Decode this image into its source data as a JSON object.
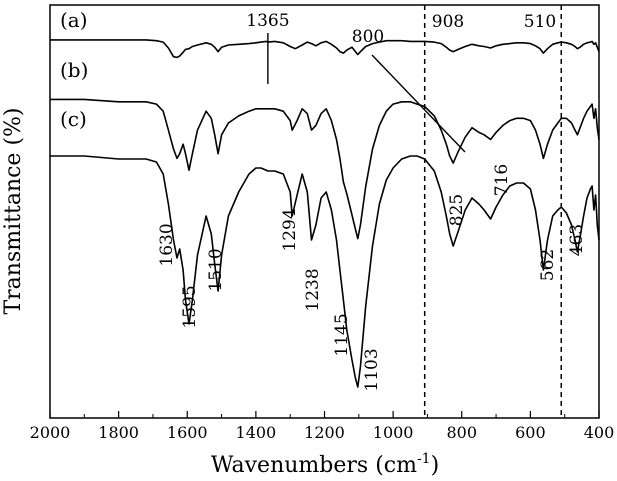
{
  "chart_data": {
    "type": "line",
    "title": "",
    "xlabel": "Wavenumbers",
    "xlabel_unit": "(cm-1)",
    "ylabel": "Transmittance (%)",
    "xlim": [
      2000,
      400
    ],
    "x_reversed": true,
    "x_ticks": [
      2000,
      1800,
      1600,
      1400,
      1200,
      1000,
      800,
      600,
      400
    ],
    "y_tick_labels": false,
    "grid": false,
    "series": [
      {
        "name": "(a)",
        "x": [
          2000,
          1900,
          1800,
          1720,
          1690,
          1670,
          1655,
          1640,
          1630,
          1622,
          1612,
          1605,
          1595,
          1585,
          1570,
          1545,
          1530,
          1520,
          1510,
          1500,
          1480,
          1450,
          1420,
          1400,
          1385,
          1370,
          1365,
          1345,
          1320,
          1300,
          1285,
          1265,
          1250,
          1238,
          1225,
          1210,
          1195,
          1180,
          1165,
          1155,
          1145,
          1135,
          1120,
          1110,
          1103,
          1095,
          1080,
          1060,
          1040,
          1020,
          1000,
          975,
          950,
          930,
          908,
          880,
          860,
          845,
          835,
          825,
          810,
          790,
          770,
          750,
          735,
          716,
          700,
          680,
          660,
          640,
          620,
          600,
          585,
          572,
          562,
          550,
          535,
          520,
          510,
          495,
          480,
          470,
          463,
          455,
          445,
          435,
          425,
          420,
          415,
          410,
          405,
          400
        ],
        "y": [
          96,
          96,
          96,
          96,
          95,
          93,
          85,
          73,
          72,
          74,
          79,
          83,
          84,
          87,
          89,
          92,
          90,
          86,
          80,
          86,
          89,
          90,
          91,
          92,
          93,
          94,
          93,
          94,
          92,
          87,
          84,
          89,
          93,
          91,
          88,
          92,
          94,
          90,
          85,
          80,
          78,
          82,
          86,
          80,
          76,
          80,
          87,
          91,
          93,
          95,
          95,
          95,
          94,
          94,
          94,
          93,
          91,
          86,
          82,
          80,
          83,
          87,
          90,
          88,
          87,
          85,
          88,
          90,
          91,
          92,
          92,
          91,
          88,
          84,
          78,
          84,
          90,
          92,
          93,
          92,
          90,
          87,
          84,
          86,
          90,
          92,
          93,
          94,
          90,
          92,
          86,
          80
        ]
      },
      {
        "name": "(b)",
        "x": [
          2000,
          1900,
          1800,
          1720,
          1690,
          1670,
          1655,
          1640,
          1630,
          1622,
          1612,
          1605,
          1595,
          1585,
          1570,
          1545,
          1530,
          1520,
          1510,
          1500,
          1480,
          1450,
          1420,
          1400,
          1385,
          1365,
          1345,
          1320,
          1300,
          1294,
          1280,
          1265,
          1250,
          1238,
          1225,
          1210,
          1195,
          1180,
          1165,
          1155,
          1145,
          1135,
          1120,
          1110,
          1103,
          1095,
          1080,
          1060,
          1040,
          1020,
          1000,
          975,
          950,
          930,
          908,
          880,
          860,
          845,
          835,
          825,
          810,
          790,
          770,
          750,
          735,
          716,
          700,
          680,
          660,
          640,
          620,
          600,
          585,
          572,
          562,
          550,
          535,
          520,
          510,
          495,
          480,
          470,
          463,
          455,
          445,
          435,
          425,
          420,
          415,
          410,
          405,
          400
        ],
        "y": [
          85,
          85,
          84,
          84,
          83,
          80,
          72,
          64,
          60,
          62,
          66,
          62,
          55,
          62,
          72,
          80,
          77,
          70,
          62,
          70,
          75,
          78,
          80,
          81,
          81,
          81,
          81,
          80,
          76,
          72,
          76,
          81,
          79,
          72,
          74,
          79,
          81,
          76,
          68,
          60,
          50,
          45,
          36,
          30,
          26,
          32,
          48,
          64,
          74,
          80,
          83,
          84,
          84,
          83,
          82,
          78,
          72,
          66,
          61,
          58,
          63,
          69,
          73,
          71,
          70,
          68,
          71,
          74,
          76,
          77,
          77,
          76,
          72,
          66,
          60,
          66,
          72,
          75,
          77,
          77,
          75,
          72,
          70,
          73,
          77,
          80,
          82,
          83,
          77,
          81,
          73,
          68
        ]
      },
      {
        "name": "(c)",
        "x": [
          2000,
          1900,
          1800,
          1720,
          1690,
          1670,
          1655,
          1640,
          1630,
          1622,
          1612,
          1605,
          1595,
          1585,
          1570,
          1545,
          1530,
          1520,
          1510,
          1500,
          1480,
          1450,
          1420,
          1400,
          1385,
          1365,
          1345,
          1320,
          1300,
          1294,
          1280,
          1265,
          1250,
          1238,
          1225,
          1210,
          1195,
          1180,
          1165,
          1155,
          1145,
          1135,
          1120,
          1110,
          1103,
          1095,
          1080,
          1060,
          1040,
          1020,
          1000,
          975,
          950,
          930,
          908,
          880,
          860,
          845,
          835,
          825,
          810,
          790,
          770,
          750,
          735,
          716,
          700,
          680,
          660,
          640,
          620,
          600,
          585,
          572,
          562,
          550,
          535,
          520,
          510,
          495,
          480,
          470,
          463,
          455,
          445,
          435,
          425,
          420,
          415,
          410,
          405,
          400
        ],
        "y": [
          78,
          78,
          77,
          77,
          76,
          72,
          62,
          50,
          44,
          47,
          40,
          30,
          22,
          30,
          45,
          58,
          52,
          42,
          33,
          45,
          58,
          66,
          72,
          74,
          74,
          73,
          73,
          72,
          66,
          58,
          65,
          72,
          66,
          50,
          55,
          64,
          66,
          60,
          50,
          40,
          30,
          20,
          10,
          4,
          1,
          8,
          28,
          48,
          62,
          70,
          74,
          77,
          78,
          78,
          77,
          73,
          66,
          58,
          52,
          48,
          53,
          60,
          64,
          62,
          60,
          57,
          61,
          65,
          68,
          69,
          69,
          67,
          60,
          50,
          40,
          50,
          58,
          60,
          61,
          59,
          55,
          50,
          46,
          51,
          58,
          64,
          67,
          68,
          60,
          65,
          55,
          50
        ]
      }
    ],
    "annotations": [
      {
        "text": "1365",
        "x": 1365
      },
      {
        "text": "800",
        "x": 800
      },
      {
        "text": "908",
        "x": 908
      },
      {
        "text": "510",
        "x": 510
      },
      {
        "text": "1630",
        "x": 1630
      },
      {
        "text": "1595",
        "x": 1595
      },
      {
        "text": "1510",
        "x": 1510
      },
      {
        "text": "1294",
        "x": 1294
      },
      {
        "text": "1238",
        "x": 1238
      },
      {
        "text": "1145",
        "x": 1145
      },
      {
        "text": "1103",
        "x": 1103
      },
      {
        "text": "825",
        "x": 825
      },
      {
        "text": "716",
        "x": 716
      },
      {
        "text": "562",
        "x": 562
      },
      {
        "text": "463",
        "x": 463
      }
    ],
    "reference_lines": [
      908,
      510
    ]
  }
}
